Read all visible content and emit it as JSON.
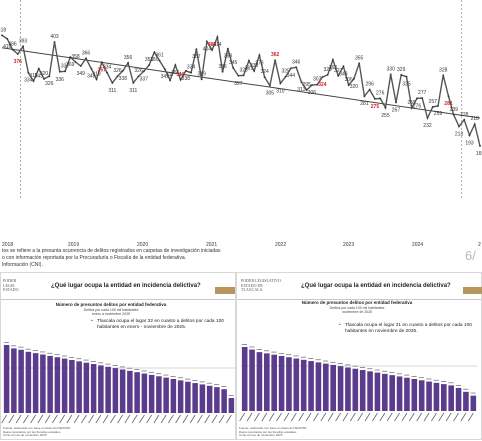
{
  "top_chart": {
    "labels": [
      "418",
      "410",
      "386",
      "376",
      "393",
      "334",
      "315",
      "343",
      "320",
      "326",
      "403",
      "336",
      "337",
      "369",
      "358",
      "349",
      "366",
      "343",
      "319",
      "357",
      "334",
      "311",
      "326",
      "338",
      "356",
      "311",
      "326",
      "337",
      "351",
      "380",
      "361",
      "342",
      "317",
      "351",
      "318",
      "338",
      "334",
      "387",
      "319",
      "404",
      "385",
      "414",
      "336",
      "388",
      "345",
      "327",
      "328",
      "361",
      "338",
      "373",
      "324",
      "305",
      "362",
      "310",
      "325",
      "344",
      "346",
      "313",
      "295",
      "306",
      "307",
      "324",
      "329",
      "363",
      "327",
      "348",
      "306",
      "320",
      "355",
      "281",
      "296",
      "275",
      "276",
      "255",
      "330",
      "267",
      "329",
      "325",
      "255",
      "276",
      "277",
      "232",
      "257",
      "259",
      "328",
      "281",
      "239",
      "213",
      "228",
      "193",
      "218",
      "169"
    ],
    "red_indices": [
      3,
      19,
      34,
      40,
      52,
      61,
      71,
      85
    ],
    "trend": {
      "start": 390,
      "end": 232
    },
    "markers_at": [
      2,
      86
    ],
    "years": [
      "2018",
      "2019",
      "2020",
      "2021",
      "2022",
      "2023",
      "2024",
      "2"
    ],
    "month_axis": [],
    "footnote_lines": [
      "tos se refiere a la presunta ocurrencia de delitos registrados en carpetas de investigación iniciadas",
      "o con información reportada por la Procuraduría o Fiscalía de la entidad federativa.",
      "Información (CNI)."
    ],
    "page_number": "6/"
  },
  "slide_left": {
    "logo": [
      "PODER",
      "LEGIS.",
      "ESTADO"
    ],
    "title": "¿Qué lugar ocupa la entidad en incidencia delictiva?",
    "chart_title": "Número de presuntos delitos por entidad federativa",
    "chart_subtitle": "Delitos por cada 100 mil habitantes",
    "chart_period": "enero a noviembre 2025",
    "note_lines": [
      "Tlaxcala ocupa el lugar 32 en cuanto a delitos por cada 100",
      "habitantes en enero - noviembre de 2025."
    ],
    "bar_heights": [
      100,
      95,
      93,
      90,
      88,
      86,
      84,
      82,
      80,
      78,
      76,
      74,
      72,
      70,
      68,
      66,
      64,
      62,
      60,
      58,
      56,
      54,
      52,
      50,
      48,
      46,
      44,
      42,
      40,
      38,
      35,
      22
    ],
    "source_lines": [
      "Fuente: elaborado con base en datos del SESNSP",
      "Datos reportados por las fiscalías estatales",
      "Corte al mes de noviembre 2025"
    ]
  },
  "slide_right": {
    "logo": [
      "PODER LEGISLATIVO",
      "ESTADO DE",
      "TLAXCALA"
    ],
    "title": "¿Qué lugar ocupa la entidad en incidencia delictiva?",
    "chart_title": "Número de presuntos delitos por entidad federativa",
    "chart_subtitle": "Delitos por cada 100 mil habitantes",
    "chart_period": "noviembre de 2025",
    "note_lines": [
      "Tlaxcala ocupa el lugar 31 en cuanto a delitos por cada 100",
      "habitantes en noviembre de 2025."
    ],
    "bar_heights": [
      100,
      96,
      92,
      90,
      88,
      86,
      84,
      82,
      80,
      78,
      76,
      74,
      72,
      70,
      68,
      66,
      64,
      62,
      60,
      58,
      56,
      54,
      52,
      50,
      48,
      46,
      44,
      42,
      40,
      36,
      30,
      24
    ],
    "source_lines": [
      "Fuente: elaborado con base en datos del SESNSP",
      "Datos reportados por las fiscalías estatales",
      "Corte al mes de noviembre 2025"
    ]
  },
  "colors": {
    "line": "#555555",
    "red_label": "#d0212a",
    "bars": "#5b3b8c",
    "tag": "#b7965d"
  }
}
